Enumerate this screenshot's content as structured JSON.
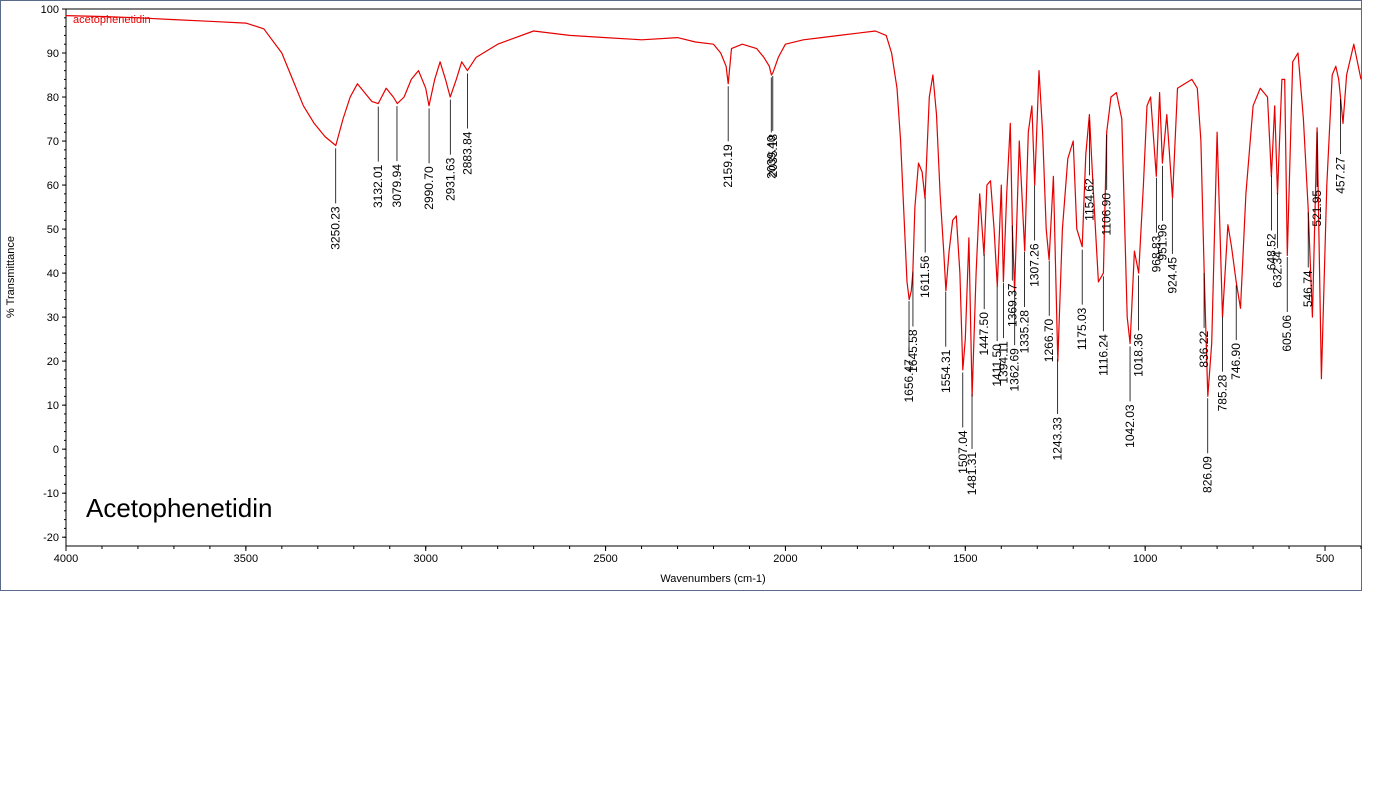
{
  "chart_data": {
    "type": "line",
    "title": "",
    "compound_label": "Acetophenetidin",
    "legend_text": "acetophenetidin",
    "xlabel": "Wavenumbers (cm-1)",
    "ylabel": "% Transmittance",
    "xlim": [
      4000,
      400
    ],
    "ylim": [
      -22,
      100
    ],
    "x_ticks": [
      4000,
      3500,
      3000,
      2500,
      2000,
      1500,
      1000,
      500
    ],
    "y_ticks": [
      100,
      90,
      80,
      70,
      60,
      50,
      40,
      30,
      20,
      10,
      0,
      -10,
      -20
    ],
    "line_color": "#e60000",
    "grid": false,
    "series": [
      {
        "x": [
          4000,
          3900,
          3800,
          3700,
          3600,
          3500,
          3450,
          3400,
          3370,
          3340,
          3310,
          3280,
          3250,
          3230,
          3210,
          3190,
          3170,
          3150,
          3132,
          3110,
          3090,
          3079,
          3060,
          3040,
          3020,
          3000,
          2991,
          2975,
          2960,
          2945,
          2932,
          2915,
          2900,
          2884,
          2860,
          2800,
          2700,
          2600,
          2500,
          2400,
          2300,
          2250,
          2200,
          2180,
          2165,
          2159,
          2150,
          2120,
          2080,
          2060,
          2045,
          2039,
          2035,
          2020,
          2000,
          1950,
          1900,
          1850,
          1800,
          1750,
          1720,
          1705,
          1690,
          1680,
          1670,
          1662,
          1656,
          1650,
          1646,
          1640,
          1630,
          1620,
          1612,
          1600,
          1590,
          1580,
          1570,
          1560,
          1554,
          1545,
          1535,
          1525,
          1515,
          1507,
          1500,
          1490,
          1481,
          1470,
          1460,
          1448,
          1440,
          1430,
          1420,
          1411,
          1400,
          1394,
          1385,
          1375,
          1369,
          1363,
          1350,
          1335,
          1325,
          1315,
          1307,
          1295,
          1285,
          1275,
          1267,
          1255,
          1243,
          1230,
          1215,
          1200,
          1190,
          1175,
          1165,
          1155,
          1145,
          1130,
          1116,
          1107,
          1095,
          1080,
          1065,
          1050,
          1042,
          1030,
          1018,
          1005,
          995,
          985,
          969,
          960,
          952,
          940,
          924,
          910,
          890,
          870,
          855,
          845,
          836,
          826,
          815,
          800,
          785,
          770,
          760,
          747,
          735,
          720,
          700,
          680,
          660,
          649,
          640,
          632,
          620,
          612,
          605,
          590,
          575,
          560,
          547,
          535,
          522,
          510,
          495,
          480,
          470,
          462,
          457,
          450,
          440,
          420,
          400
        ],
        "y": [
          98.5,
          98.3,
          98,
          97.6,
          97.2,
          96.8,
          95.5,
          90,
          84,
          78,
          74,
          71,
          69,
          75,
          80,
          83,
          81,
          79,
          78.5,
          82,
          80,
          78.5,
          80,
          84,
          86,
          82,
          78,
          84,
          88,
          84,
          80,
          84,
          88,
          86,
          89,
          92,
          95,
          94,
          93.5,
          93,
          93.5,
          92.5,
          92,
          90,
          87,
          83,
          91,
          92,
          91,
          89,
          87,
          85,
          85.5,
          89,
          92,
          93,
          93.5,
          94,
          94.5,
          95,
          94,
          90,
          82,
          70,
          52,
          38,
          34,
          36,
          40,
          55,
          65,
          63,
          57,
          80,
          85,
          76,
          58,
          45,
          36,
          45,
          52,
          53,
          40,
          18,
          25,
          48,
          12,
          40,
          58,
          44,
          60,
          61,
          50,
          37,
          60,
          38,
          58,
          74,
          50,
          36,
          70,
          45,
          72,
          78,
          60,
          86,
          72,
          50,
          43,
          62,
          20,
          50,
          66,
          70,
          50,
          46,
          67,
          76,
          60,
          38,
          40,
          72,
          80,
          81,
          75,
          30,
          24,
          45,
          40,
          60,
          78,
          80,
          62,
          81,
          65,
          76,
          57,
          82,
          83,
          84,
          82,
          70,
          40,
          12,
          24,
          72,
          30,
          51,
          46,
          38,
          32,
          58,
          78,
          82,
          80,
          62,
          78,
          58,
          84,
          84,
          44,
          88,
          90,
          75,
          55,
          30,
          73,
          16,
          60,
          85,
          87,
          84,
          80,
          74,
          85,
          92,
          84
        ]
      }
    ],
    "peak_labels": [
      {
        "x": 3250.23,
        "label": "3250.23"
      },
      {
        "x": 3132.01,
        "label": "3132.01"
      },
      {
        "x": 3079.94,
        "label": "3079.94"
      },
      {
        "x": 2990.7,
        "label": "2990.70"
      },
      {
        "x": 2931.63,
        "label": "2931.63"
      },
      {
        "x": 2883.84,
        "label": "2883.84"
      },
      {
        "x": 2159.19,
        "label": "2159.19"
      },
      {
        "x": 2035.18,
        "label": "2035.18"
      },
      {
        "x": 2039.4,
        "label": "2039.40"
      },
      {
        "x": 1656.47,
        "label": "1656.47"
      },
      {
        "x": 1645.58,
        "label": "1645.58"
      },
      {
        "x": 1611.56,
        "label": "1611.56"
      },
      {
        "x": 1554.31,
        "label": "1554.31"
      },
      {
        "x": 1507.04,
        "label": "1507.04"
      },
      {
        "x": 1481.31,
        "label": "1481.31"
      },
      {
        "x": 1447.5,
        "label": "1447.50"
      },
      {
        "x": 1411.5,
        "label": "1411.50"
      },
      {
        "x": 1394.11,
        "label": "1394.11"
      },
      {
        "x": 1369.37,
        "label": "1369.37"
      },
      {
        "x": 1362.69,
        "label": "1362.69"
      },
      {
        "x": 1335.28,
        "label": "1335.28"
      },
      {
        "x": 1307.26,
        "label": "1307.26"
      },
      {
        "x": 1266.7,
        "label": "1266.70"
      },
      {
        "x": 1243.33,
        "label": "1243.33"
      },
      {
        "x": 1175.03,
        "label": "1175.03"
      },
      {
        "x": 1154.62,
        "label": "1154.62"
      },
      {
        "x": 1116.24,
        "label": "1116.24"
      },
      {
        "x": 1106.9,
        "label": "1106.90"
      },
      {
        "x": 1042.03,
        "label": "1042.03"
      },
      {
        "x": 1018.36,
        "label": "1018.36"
      },
      {
        "x": 968.83,
        "label": "968.83"
      },
      {
        "x": 951.96,
        "label": "951.96"
      },
      {
        "x": 924.45,
        "label": "924.45"
      },
      {
        "x": 836.22,
        "label": "836.22"
      },
      {
        "x": 826.09,
        "label": "826.09"
      },
      {
        "x": 785.28,
        "label": "785.28"
      },
      {
        "x": 746.9,
        "label": "746.90"
      },
      {
        "x": 648.52,
        "label": "648.52"
      },
      {
        "x": 632.34,
        "label": "632.34"
      },
      {
        "x": 605.06,
        "label": "605.06"
      },
      {
        "x": 546.74,
        "label": "546.74"
      },
      {
        "x": 521.95,
        "label": "521.95"
      },
      {
        "x": 457.27,
        "label": "457.27"
      }
    ]
  }
}
